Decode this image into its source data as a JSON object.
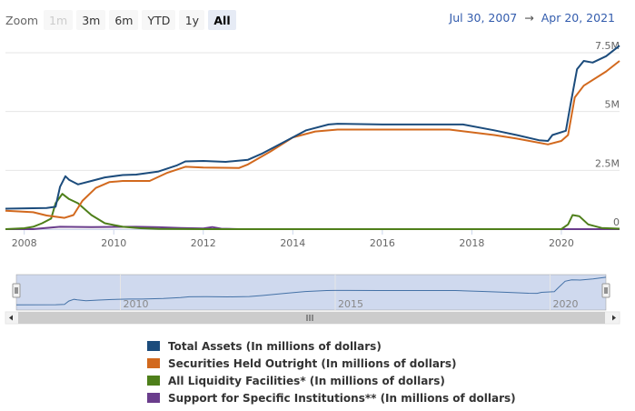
{
  "zoom": {
    "label": "Zoom",
    "buttons": [
      {
        "label": "1m",
        "state": "disabled"
      },
      {
        "label": "3m",
        "state": "normal"
      },
      {
        "label": "6m",
        "state": "normal"
      },
      {
        "label": "YTD",
        "state": "normal"
      },
      {
        "label": "1y",
        "state": "normal"
      },
      {
        "label": "All",
        "state": "active"
      }
    ]
  },
  "range": {
    "from": "Jul 30, 2007",
    "arrow": "→",
    "to": "Apr 20, 2021"
  },
  "colors": {
    "total": "#1c4c7c",
    "securities": "#d2691e",
    "liquidity": "#4e7f1a",
    "support": "#6a3d8c",
    "grid": "#e6e6e6",
    "navigator_fill": "#cfd9ee",
    "navigator_line": "#4572a7"
  },
  "chart_data": {
    "type": "line",
    "x_range": [
      2007.58,
      2021.3
    ],
    "ylim": [
      0,
      8000000
    ],
    "y_ticks": [
      {
        "value": 0,
        "label": "0"
      },
      {
        "value": 2500000,
        "label": "2.5M"
      },
      {
        "value": 5000000,
        "label": "5M"
      },
      {
        "value": 7500000,
        "label": "7.5M"
      }
    ],
    "x_ticks": [
      {
        "value": 2008,
        "label": "2008"
      },
      {
        "value": 2010,
        "label": "2010"
      },
      {
        "value": 2012,
        "label": "2012"
      },
      {
        "value": 2014,
        "label": "2014"
      },
      {
        "value": 2016,
        "label": "2016"
      },
      {
        "value": 2018,
        "label": "2018"
      },
      {
        "value": 2020,
        "label": "2020"
      }
    ],
    "navigator_ticks": [
      {
        "value": 2010,
        "label": "2010"
      },
      {
        "value": 2015,
        "label": "2015"
      },
      {
        "value": 2020,
        "label": "2020"
      }
    ],
    "series": [
      {
        "name": "Total Assets (In millions of dollars)",
        "key": "total",
        "points": [
          [
            2007.58,
            870000
          ],
          [
            2008.5,
            900000
          ],
          [
            2008.7,
            950000
          ],
          [
            2008.8,
            1800000
          ],
          [
            2008.92,
            2250000
          ],
          [
            2009.0,
            2100000
          ],
          [
            2009.2,
            1900000
          ],
          [
            2009.5,
            2050000
          ],
          [
            2009.8,
            2200000
          ],
          [
            2010.2,
            2300000
          ],
          [
            2010.5,
            2320000
          ],
          [
            2011.0,
            2450000
          ],
          [
            2011.4,
            2700000
          ],
          [
            2011.6,
            2880000
          ],
          [
            2012.0,
            2900000
          ],
          [
            2012.5,
            2860000
          ],
          [
            2013.0,
            2950000
          ],
          [
            2013.3,
            3200000
          ],
          [
            2013.8,
            3700000
          ],
          [
            2014.3,
            4200000
          ],
          [
            2014.8,
            4450000
          ],
          [
            2015.0,
            4480000
          ],
          [
            2016.0,
            4450000
          ],
          [
            2017.0,
            4450000
          ],
          [
            2017.8,
            4450000
          ],
          [
            2018.5,
            4200000
          ],
          [
            2019.0,
            4000000
          ],
          [
            2019.5,
            3780000
          ],
          [
            2019.7,
            3750000
          ],
          [
            2019.8,
            4000000
          ],
          [
            2020.1,
            4180000
          ],
          [
            2020.2,
            5250000
          ],
          [
            2020.35,
            6800000
          ],
          [
            2020.5,
            7150000
          ],
          [
            2020.7,
            7080000
          ],
          [
            2021.0,
            7350000
          ],
          [
            2021.3,
            7800000
          ]
        ]
      },
      {
        "name": "Securities Held Outright (In millions of dollars)",
        "key": "securities",
        "points": [
          [
            2007.58,
            780000
          ],
          [
            2008.2,
            720000
          ],
          [
            2008.5,
            580000
          ],
          [
            2008.9,
            480000
          ],
          [
            2009.1,
            600000
          ],
          [
            2009.3,
            1200000
          ],
          [
            2009.6,
            1750000
          ],
          [
            2009.9,
            2000000
          ],
          [
            2010.2,
            2050000
          ],
          [
            2010.8,
            2050000
          ],
          [
            2011.2,
            2400000
          ],
          [
            2011.6,
            2650000
          ],
          [
            2012.0,
            2620000
          ],
          [
            2012.8,
            2600000
          ],
          [
            2013.0,
            2750000
          ],
          [
            2013.5,
            3300000
          ],
          [
            2014.0,
            3900000
          ],
          [
            2014.5,
            4150000
          ],
          [
            2015.0,
            4230000
          ],
          [
            2016.0,
            4230000
          ],
          [
            2017.5,
            4230000
          ],
          [
            2018.5,
            4000000
          ],
          [
            2019.0,
            3850000
          ],
          [
            2019.7,
            3600000
          ],
          [
            2020.0,
            3750000
          ],
          [
            2020.15,
            4000000
          ],
          [
            2020.3,
            5600000
          ],
          [
            2020.5,
            6100000
          ],
          [
            2021.0,
            6700000
          ],
          [
            2021.3,
            7150000
          ]
        ]
      },
      {
        "name": "All Liquidity Facilities* (In millions of dollars)",
        "key": "liquidity",
        "points": [
          [
            2007.58,
            0
          ],
          [
            2008.0,
            40000
          ],
          [
            2008.2,
            100000
          ],
          [
            2008.4,
            250000
          ],
          [
            2008.6,
            450000
          ],
          [
            2008.7,
            1100000
          ],
          [
            2008.85,
            1500000
          ],
          [
            2009.0,
            1280000
          ],
          [
            2009.2,
            1100000
          ],
          [
            2009.5,
            600000
          ],
          [
            2009.8,
            250000
          ],
          [
            2010.2,
            100000
          ],
          [
            2010.6,
            40000
          ],
          [
            2011.0,
            10000
          ],
          [
            2012.0,
            0
          ],
          [
            2020.0,
            0
          ],
          [
            2020.15,
            200000
          ],
          [
            2020.25,
            600000
          ],
          [
            2020.4,
            550000
          ],
          [
            2020.6,
            200000
          ],
          [
            2020.9,
            50000
          ],
          [
            2021.3,
            20000
          ]
        ]
      },
      {
        "name": "Support for Specific Institutions** (In millions of dollars)",
        "key": "support",
        "points": [
          [
            2007.58,
            0
          ],
          [
            2008.2,
            0
          ],
          [
            2008.3,
            20000
          ],
          [
            2008.8,
            100000
          ],
          [
            2009.5,
            90000
          ],
          [
            2010.5,
            100000
          ],
          [
            2011.0,
            80000
          ],
          [
            2011.5,
            50000
          ],
          [
            2012.0,
            30000
          ],
          [
            2012.2,
            90000
          ],
          [
            2012.4,
            20000
          ],
          [
            2012.8,
            0
          ],
          [
            2021.3,
            0
          ]
        ]
      }
    ]
  }
}
